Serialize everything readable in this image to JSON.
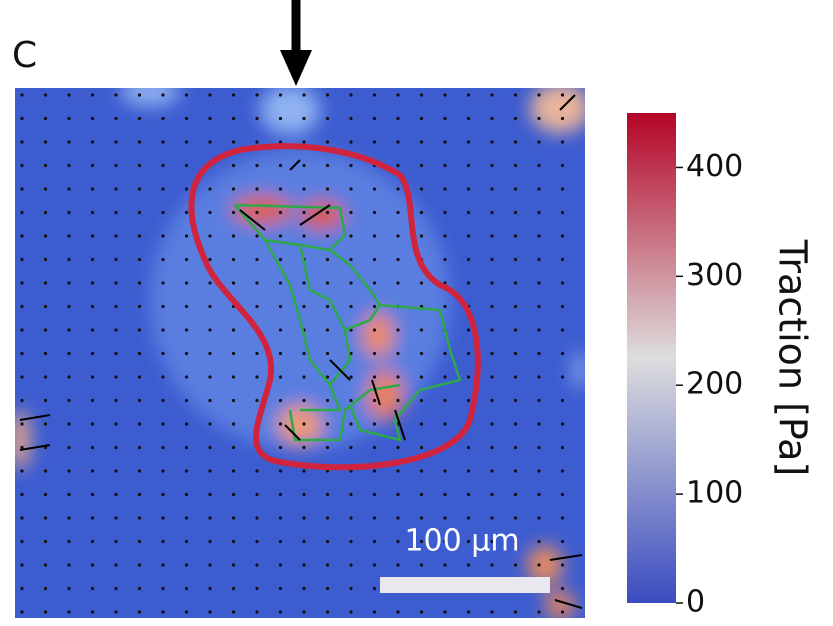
{
  "panel_label": "C",
  "scale_bar_label": "100 µm",
  "chart_data": {
    "type": "heatmap",
    "colorbar": {
      "label": "Traction [Pa]",
      "lim": [
        0,
        450
      ],
      "ticks": [
        0,
        100,
        200,
        300,
        400
      ],
      "colors": [
        "#3b4cc0",
        "#dddddd",
        "#b40426"
      ]
    }
  }
}
